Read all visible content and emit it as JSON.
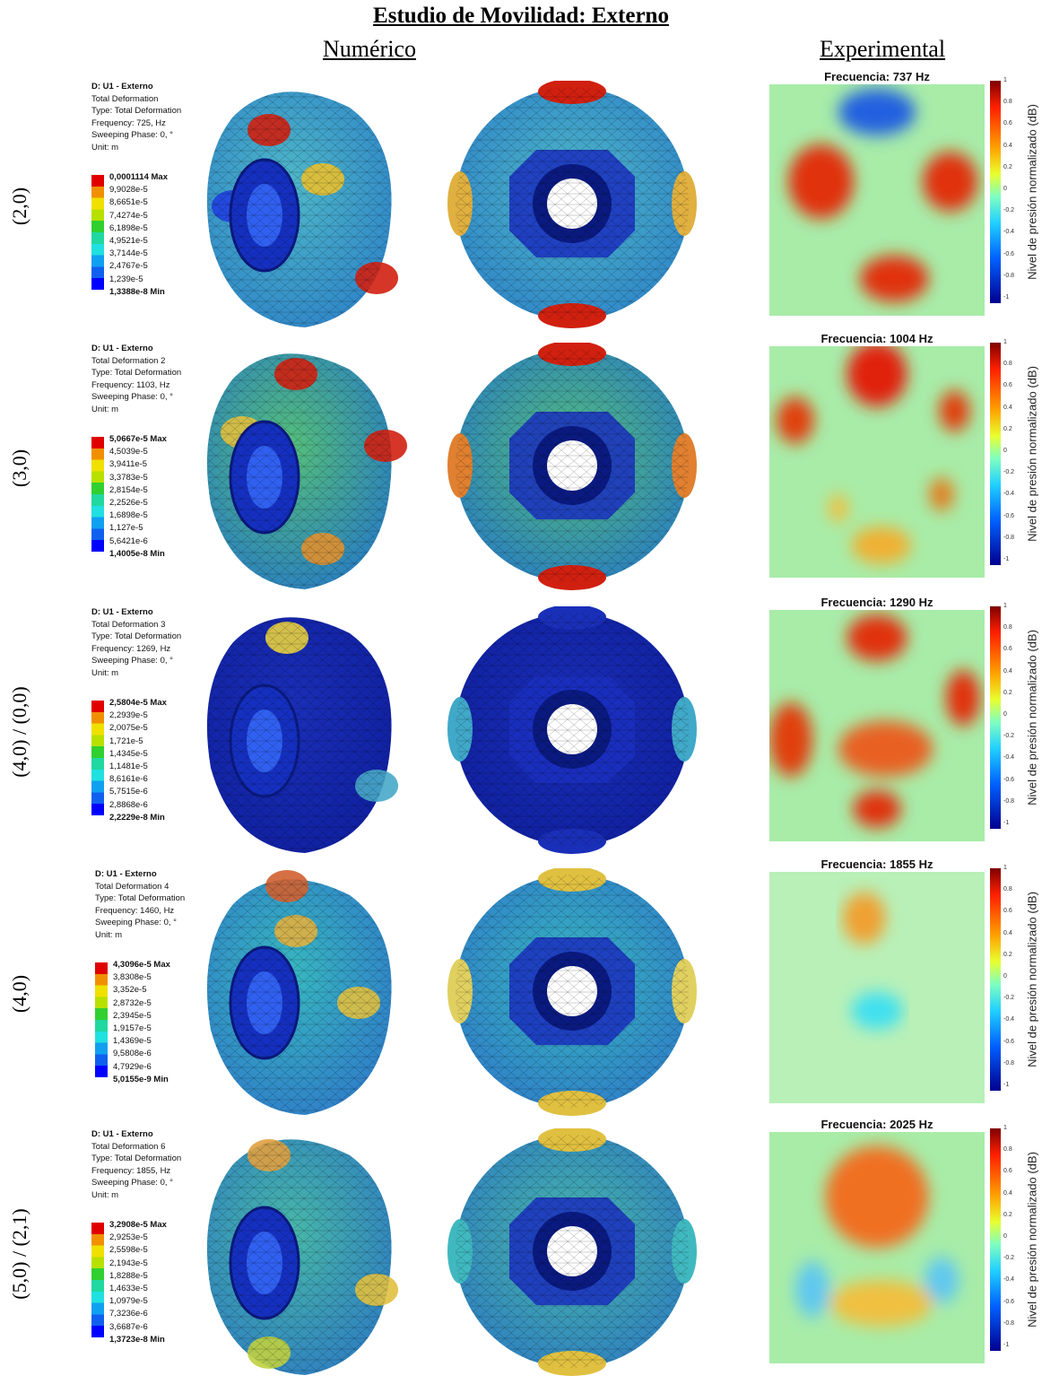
{
  "title": "Estudio de Movilidad: Externo",
  "columns": {
    "numeric": "Numérico",
    "experimental": "Experimental"
  },
  "colorbar": {
    "label": "Nivel de presión normalizado (dB)",
    "ticks": [
      "1",
      "0.8",
      "0.6",
      "0.4",
      "0.2",
      "0",
      "-0.2",
      "-0.4",
      "-0.6",
      "-0.8",
      "-1"
    ]
  },
  "rows": [
    {
      "mode": "(2,0)",
      "legend": {
        "header": "D: U1 - Externo",
        "type_line": "Total Deformation",
        "type2": "Type: Total Deformation",
        "frequency": "Frequency: 725, Hz",
        "phase": "Sweeping Phase: 0, °",
        "unit": "Unit: m",
        "values": [
          "0,0001114 Max",
          "9,9028e-5",
          "8,6651e-5",
          "7,4274e-5",
          "6,1898e-5",
          "4,9521e-5",
          "3,7144e-5",
          "2,4767e-5",
          "1,239e-5",
          "1,3388e-8 Min"
        ]
      },
      "experimental_title": "Frecuencia: 737 Hz",
      "base_level": "low-cyan"
    },
    {
      "mode": "(3,0)",
      "legend": {
        "header": "D: U1 - Externo",
        "type_line": "Total Deformation 2",
        "type2": "Type: Total Deformation",
        "frequency": "Frequency: 1103, Hz",
        "phase": "Sweeping Phase: 0, °",
        "unit": "Unit: m",
        "values": [
          "5,0667e-5 Max",
          "4,5039e-5",
          "3,9411e-5",
          "3,3783e-5",
          "2,8154e-5",
          "2,2526e-5",
          "1,6898e-5",
          "1,127e-5",
          "5,6421e-6",
          "1,4005e-8 Min"
        ]
      },
      "experimental_title": "Frecuencia: 1004 Hz",
      "base_level": "green"
    },
    {
      "mode": "(4,0) / (0,0)",
      "legend": {
        "header": "D: U1 - Externo",
        "type_line": "Total Deformation 3",
        "type2": "Type: Total Deformation",
        "frequency": "Frequency: 1269, Hz",
        "phase": "Sweeping Phase: 0, °",
        "unit": "Unit: m",
        "values": [
          "2,5804e-5 Max",
          "2,2939e-5",
          "2,0075e-5",
          "1,721e-5",
          "1,4345e-5",
          "1,1481e-5",
          "8,6161e-6",
          "5,7515e-6",
          "2,8868e-6",
          "2,2229e-8 Min"
        ]
      },
      "experimental_title": "Frecuencia: 1290 Hz",
      "base_level": "blue"
    },
    {
      "mode": "(4,0)",
      "legend": {
        "header": "D: U1 - Externo",
        "type_line": "Total Deformation 4",
        "type2": "Type: Total Deformation",
        "frequency": "Frequency: 1460, Hz",
        "phase": "Sweeping Phase: 0, °",
        "unit": "Unit: m",
        "values": [
          "4,3096e-5 Max",
          "3,8308e-5",
          "3,352e-5",
          "2,8732e-5",
          "2,3945e-5",
          "1,9157e-5",
          "1,4369e-5",
          "9,5808e-6",
          "4,7929e-6",
          "5,0155e-9 Min"
        ]
      },
      "experimental_title": "Frecuencia: 1855 Hz",
      "base_level": "cyan"
    },
    {
      "mode": "(5,0) / (2,1)",
      "legend": {
        "header": "D: U1 - Externo",
        "type_line": "Total Deformation 6",
        "type2": "Type: Total Deformation",
        "frequency": "Frequency: 1855, Hz",
        "phase": "Sweeping Phase: 0, °",
        "unit": "Unit: m",
        "values": [
          "3,2908e-5 Max",
          "2,9253e-5",
          "2,5598e-5",
          "2,1943e-5",
          "1,8288e-5",
          "1,4633e-5",
          "1,0979e-5",
          "7,3236e-6",
          "3,6687e-6",
          "1,3723e-8 Min"
        ]
      },
      "experimental_title": "Frecuencia: 2025 Hz",
      "base_level": "cyan-green"
    }
  ]
}
